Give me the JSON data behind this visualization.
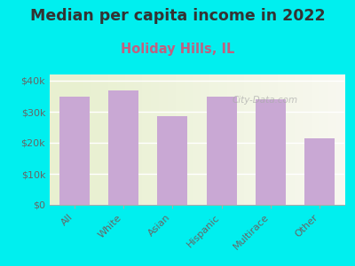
{
  "title": "Median per capita income in 2022",
  "subtitle": "Holiday Hills, IL",
  "categories": [
    "All",
    "White",
    "Asian",
    "Hispanic",
    "Multirace",
    "Other"
  ],
  "values": [
    35000,
    37000,
    28500,
    35000,
    34000,
    21500
  ],
  "bar_color": "#c9a8d4",
  "background_outer": "#00efef",
  "background_inner_left": "#e8f0d0",
  "background_inner_right": "#f0f0f0",
  "title_color": "#333333",
  "subtitle_color": "#c06080",
  "tick_label_color": "#666666",
  "ytick_label_color": "#666666",
  "watermark": "City-Data.com",
  "ylim": [
    0,
    42000
  ],
  "yticks": [
    0,
    10000,
    20000,
    30000,
    40000
  ],
  "title_fontsize": 12.5,
  "subtitle_fontsize": 10.5
}
